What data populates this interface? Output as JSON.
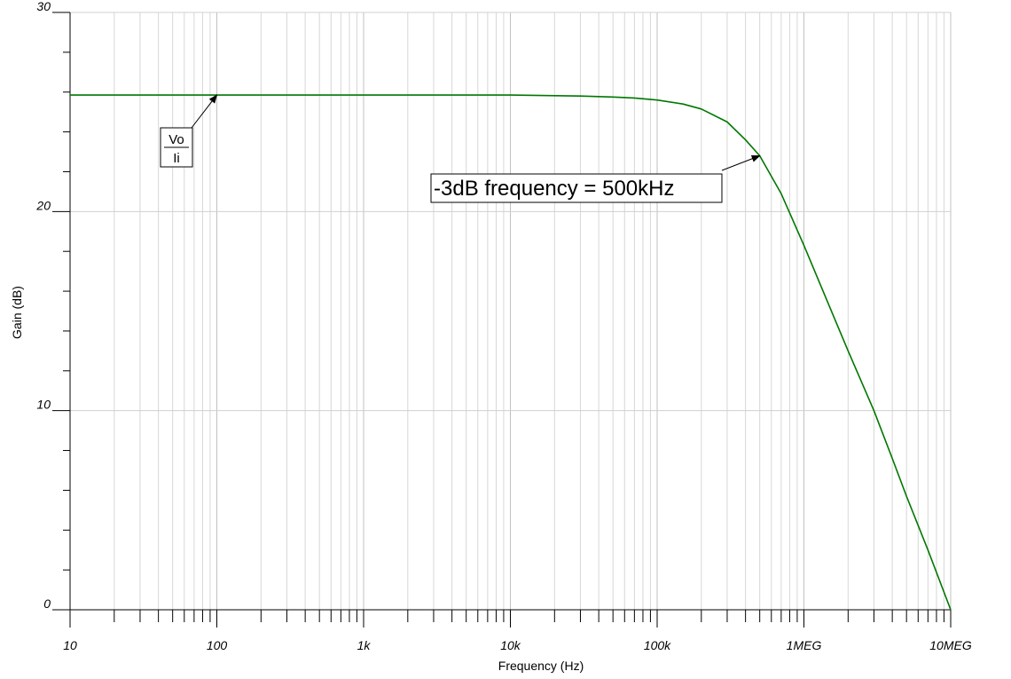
{
  "chart_data": {
    "type": "line",
    "xscale": "log",
    "xlabel": "Frequency (Hz)",
    "ylabel": "Gain (dB)",
    "xlim": [
      10,
      10000000
    ],
    "ylim": [
      0,
      30
    ],
    "grid": true,
    "x_ticks": [
      {
        "value": 10,
        "label": "10"
      },
      {
        "value": 100,
        "label": "100"
      },
      {
        "value": 1000,
        "label": "1k"
      },
      {
        "value": 10000,
        "label": "10k"
      },
      {
        "value": 100000,
        "label": "100k"
      },
      {
        "value": 1000000,
        "label": "1MEG"
      },
      {
        "value": 10000000,
        "label": "10MEG"
      }
    ],
    "y_ticks": [
      {
        "value": 0,
        "label": "0"
      },
      {
        "value": 10,
        "label": "10"
      },
      {
        "value": 20,
        "label": "20"
      },
      {
        "value": 30,
        "label": "30"
      }
    ],
    "series": [
      {
        "color": "#007700",
        "x": [
          10,
          100,
          1000,
          10000,
          30000,
          50000,
          70000,
          100000,
          150000,
          200000,
          300000,
          400000,
          500000,
          700000,
          1000000,
          1500000,
          2000000,
          3000000,
          4000000,
          5000000,
          7000000,
          10000000
        ],
        "y": [
          25.85,
          25.85,
          25.85,
          25.85,
          25.8,
          25.75,
          25.7,
          25.6,
          25.4,
          25.15,
          24.5,
          23.6,
          22.8,
          20.9,
          18.3,
          15.2,
          13.0,
          10.0,
          7.6,
          5.7,
          3.0,
          0.0
        ]
      }
    ],
    "annotations": [
      {
        "kind": "fraction",
        "numerator": "Vo",
        "denominator": "Ii",
        "point": {
          "x": 100,
          "y": 25.85
        }
      },
      {
        "kind": "text",
        "text": "-3dB frequency = 500kHz",
        "point": {
          "x": 500000,
          "y": 22.8
        }
      }
    ]
  }
}
